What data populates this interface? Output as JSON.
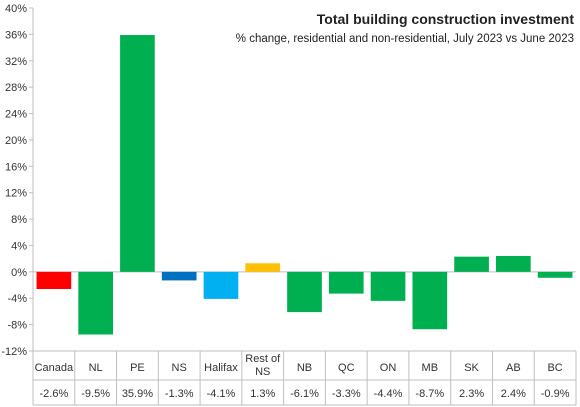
{
  "chart_data": {
    "type": "bar",
    "title": "Total building construction investment",
    "subtitle": "% change, residential and non-residential, July 2023 vs June 2023",
    "categories": [
      [
        "Canada"
      ],
      [
        "NL"
      ],
      [
        "PE"
      ],
      [
        "NS"
      ],
      [
        "Halifax"
      ],
      [
        "Rest of",
        "NS"
      ],
      [
        "NB"
      ],
      [
        "QC"
      ],
      [
        "ON"
      ],
      [
        "MB"
      ],
      [
        "SK"
      ],
      [
        "AB"
      ],
      [
        "BC"
      ]
    ],
    "values": [
      -2.6,
      -9.5,
      35.9,
      -1.3,
      -4.1,
      1.3,
      -6.1,
      -3.3,
      -4.4,
      -8.7,
      2.3,
      2.4,
      -0.9
    ],
    "value_labels": [
      "-2.6%",
      "-9.5%",
      "35.9%",
      "-1.3%",
      "-4.1%",
      "1.3%",
      "-6.1%",
      "-3.3%",
      "-4.4%",
      "-8.7%",
      "2.3%",
      "2.4%",
      "-0.9%"
    ],
    "bar_colors": [
      "#ff0000",
      "#00b050",
      "#00b050",
      "#0070c0",
      "#00b0f0",
      "#ffc000",
      "#00b050",
      "#00b050",
      "#00b050",
      "#00b050",
      "#00b050",
      "#00b050",
      "#00b050"
    ],
    "ylim": [
      -12,
      40
    ],
    "yticks": [
      -12,
      -8,
      -4,
      0,
      4,
      8,
      12,
      16,
      20,
      24,
      28,
      32,
      36,
      40
    ],
    "ytick_labels": [
      "-12%",
      "-8%",
      "-4%",
      "0%",
      "4%",
      "8%",
      "12%",
      "16%",
      "20%",
      "24%",
      "28%",
      "32%",
      "36%",
      "40%"
    ],
    "grid": false,
    "data_table_below": true
  }
}
